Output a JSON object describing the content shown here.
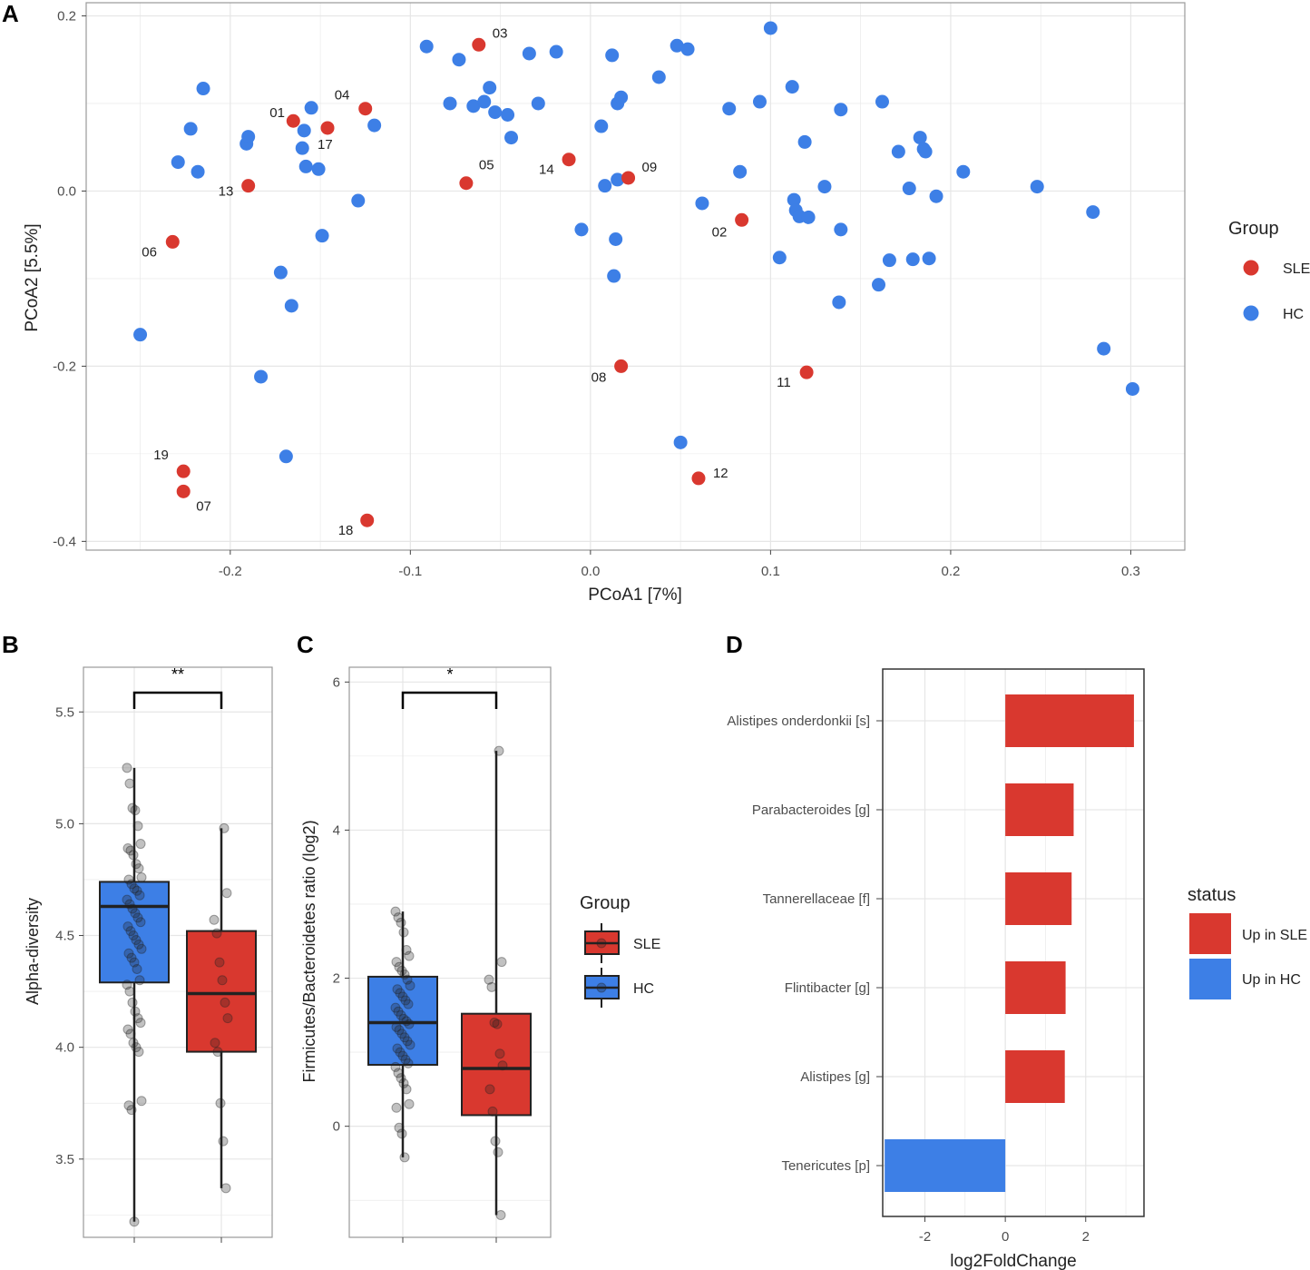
{
  "colors": {
    "sle": "#d9382f",
    "hc": "#3d7fe6",
    "grid": "#e6e6e6",
    "frame": "#9a9a9a",
    "text": "#222222",
    "axis_text": "#4d4d4d"
  },
  "panel_labels": {
    "a": "A",
    "b": "B",
    "c": "C",
    "d": "D"
  },
  "chart_data": [
    {
      "id": "A",
      "type": "scatter",
      "title": "",
      "xlabel": "PCoA1   [7%]",
      "ylabel": "PCoA2   [5.5%]",
      "xlim": [
        -0.28,
        0.33
      ],
      "ylim": [
        -0.41,
        0.215
      ],
      "xticks": [
        -0.2,
        -0.1,
        0.0,
        0.1,
        0.2,
        0.3
      ],
      "xtick_labels": [
        "-0.2",
        "-0.1",
        "0.0",
        "0.1",
        "0.2",
        "0.3"
      ],
      "yticks": [
        -0.4,
        -0.2,
        0.0,
        0.2
      ],
      "ytick_labels": [
        "-0.4",
        "-0.2",
        "0.0",
        "0.2"
      ],
      "legend": {
        "title": "Group",
        "position": "right",
        "entries": [
          "SLE",
          "HC"
        ]
      },
      "series": [
        {
          "name": "SLE",
          "points": [
            {
              "x": -0.165,
              "y": 0.08,
              "label": "01"
            },
            {
              "x": 0.084,
              "y": -0.033,
              "label": "02"
            },
            {
              "x": -0.062,
              "y": 0.167,
              "label": "03"
            },
            {
              "x": -0.125,
              "y": 0.094,
              "label": "04"
            },
            {
              "x": -0.069,
              "y": 0.009,
              "label": "05"
            },
            {
              "x": -0.232,
              "y": -0.058,
              "label": "06"
            },
            {
              "x": -0.226,
              "y": -0.343,
              "label": "07"
            },
            {
              "x": 0.017,
              "y": -0.2,
              "label": "08"
            },
            {
              "x": 0.021,
              "y": 0.015,
              "label": "09"
            },
            {
              "x": 0.12,
              "y": -0.207,
              "label": "11"
            },
            {
              "x": 0.06,
              "y": -0.328,
              "label": "12"
            },
            {
              "x": -0.19,
              "y": 0.006,
              "label": "13"
            },
            {
              "x": -0.012,
              "y": 0.036,
              "label": "14"
            },
            {
              "x": -0.146,
              "y": 0.072,
              "label": "17"
            },
            {
              "x": -0.124,
              "y": -0.376,
              "label": "18"
            },
            {
              "x": -0.226,
              "y": -0.32,
              "label": "19"
            }
          ]
        },
        {
          "name": "HC",
          "points": [
            {
              "x": -0.25,
              "y": -0.164
            },
            {
              "x": -0.229,
              "y": 0.033
            },
            {
              "x": -0.218,
              "y": 0.022
            },
            {
              "x": -0.215,
              "y": 0.117
            },
            {
              "x": -0.222,
              "y": 0.071
            },
            {
              "x": -0.191,
              "y": 0.054
            },
            {
              "x": -0.19,
              "y": 0.062
            },
            {
              "x": -0.183,
              "y": -0.212
            },
            {
              "x": -0.172,
              "y": -0.093
            },
            {
              "x": -0.169,
              "y": -0.303
            },
            {
              "x": -0.166,
              "y": -0.131
            },
            {
              "x": -0.159,
              "y": 0.069
            },
            {
              "x": -0.16,
              "y": 0.049
            },
            {
              "x": -0.158,
              "y": 0.028
            },
            {
              "x": -0.155,
              "y": 0.095
            },
            {
              "x": -0.151,
              "y": 0.025
            },
            {
              "x": -0.149,
              "y": -0.051
            },
            {
              "x": -0.129,
              "y": -0.011
            },
            {
              "x": -0.12,
              "y": 0.075
            },
            {
              "x": -0.091,
              "y": 0.165
            },
            {
              "x": -0.078,
              "y": 0.1
            },
            {
              "x": -0.073,
              "y": 0.15
            },
            {
              "x": -0.065,
              "y": 0.097
            },
            {
              "x": -0.059,
              "y": 0.102
            },
            {
              "x": -0.056,
              "y": 0.118
            },
            {
              "x": -0.053,
              "y": 0.09
            },
            {
              "x": -0.046,
              "y": 0.087
            },
            {
              "x": -0.044,
              "y": 0.061
            },
            {
              "x": -0.034,
              "y": 0.157
            },
            {
              "x": -0.029,
              "y": 0.1
            },
            {
              "x": -0.019,
              "y": 0.159
            },
            {
              "x": -0.005,
              "y": -0.044
            },
            {
              "x": 0.006,
              "y": 0.074
            },
            {
              "x": 0.008,
              "y": 0.006
            },
            {
              "x": 0.012,
              "y": 0.155
            },
            {
              "x": 0.013,
              "y": -0.097
            },
            {
              "x": 0.014,
              "y": -0.055
            },
            {
              "x": 0.015,
              "y": 0.013
            },
            {
              "x": 0.015,
              "y": 0.1
            },
            {
              "x": 0.017,
              "y": 0.107
            },
            {
              "x": 0.038,
              "y": 0.13
            },
            {
              "x": 0.048,
              "y": 0.166
            },
            {
              "x": 0.05,
              "y": -0.287
            },
            {
              "x": 0.054,
              "y": 0.162
            },
            {
              "x": 0.062,
              "y": -0.014
            },
            {
              "x": 0.077,
              "y": 0.094
            },
            {
              "x": 0.083,
              "y": 0.022
            },
            {
              "x": 0.094,
              "y": 0.102
            },
            {
              "x": 0.1,
              "y": 0.186
            },
            {
              "x": 0.105,
              "y": -0.076
            },
            {
              "x": 0.112,
              "y": 0.119
            },
            {
              "x": 0.113,
              "y": -0.01
            },
            {
              "x": 0.114,
              "y": -0.022
            },
            {
              "x": 0.116,
              "y": -0.029
            },
            {
              "x": 0.119,
              "y": 0.056
            },
            {
              "x": 0.121,
              "y": -0.03
            },
            {
              "x": 0.13,
              "y": 0.005
            },
            {
              "x": 0.138,
              "y": -0.127
            },
            {
              "x": 0.139,
              "y": 0.093
            },
            {
              "x": 0.139,
              "y": -0.044
            },
            {
              "x": 0.16,
              "y": -0.107
            },
            {
              "x": 0.162,
              "y": 0.102
            },
            {
              "x": 0.166,
              "y": -0.079
            },
            {
              "x": 0.171,
              "y": 0.045
            },
            {
              "x": 0.177,
              "y": 0.003
            },
            {
              "x": 0.179,
              "y": -0.078
            },
            {
              "x": 0.183,
              "y": 0.061
            },
            {
              "x": 0.185,
              "y": 0.048
            },
            {
              "x": 0.186,
              "y": 0.045
            },
            {
              "x": 0.188,
              "y": -0.077
            },
            {
              "x": 0.192,
              "y": -0.006
            },
            {
              "x": 0.207,
              "y": 0.022
            },
            {
              "x": 0.248,
              "y": 0.005
            },
            {
              "x": 0.279,
              "y": -0.024
            },
            {
              "x": 0.285,
              "y": -0.18
            },
            {
              "x": 0.301,
              "y": -0.226
            }
          ]
        }
      ]
    },
    {
      "id": "B",
      "type": "box",
      "title": "",
      "xlabel": "",
      "ylabel": "Alpha-diversity",
      "ylim": [
        3.15,
        5.7
      ],
      "yticks": [
        3.5,
        4.0,
        4.5,
        5.0,
        5.5
      ],
      "ytick_labels": [
        "3.5",
        "4.0",
        "4.5",
        "5.0",
        "5.5"
      ],
      "significance": "**",
      "groups": [
        {
          "name": "HC",
          "min": 3.22,
          "q1": 4.29,
          "median": 4.63,
          "q3": 4.74,
          "max": 5.25,
          "points": [
            5.25,
            5.18,
            5.07,
            5.06,
            4.99,
            4.91,
            4.89,
            4.88,
            4.86,
            4.82,
            4.8,
            4.76,
            4.75,
            4.73,
            4.71,
            4.7,
            4.68,
            4.66,
            4.64,
            4.62,
            4.6,
            4.58,
            4.56,
            4.54,
            4.52,
            4.5,
            4.48,
            4.46,
            4.44,
            4.42,
            4.4,
            4.38,
            4.35,
            4.3,
            4.28,
            4.25,
            4.2,
            4.16,
            4.13,
            4.11,
            4.08,
            4.06,
            4.02,
            4.0,
            3.98,
            3.76,
            3.74,
            3.72,
            3.22
          ]
        },
        {
          "name": "SLE",
          "min": 3.37,
          "q1": 3.98,
          "median": 4.24,
          "q3": 4.52,
          "max": 4.98,
          "points": [
            4.98,
            4.69,
            4.57,
            4.51,
            4.38,
            4.3,
            4.2,
            4.13,
            4.02,
            3.98,
            3.75,
            3.58,
            3.37
          ]
        }
      ]
    },
    {
      "id": "C",
      "type": "box",
      "title": "",
      "xlabel": "",
      "ylabel": "Firmicutes/Bacteroidetes ratio (log2)",
      "ylim": [
        -1.5,
        6.2
      ],
      "yticks": [
        0,
        2,
        4,
        6
      ],
      "ytick_labels": [
        "0",
        "2",
        "4",
        "6"
      ],
      "significance": "*",
      "legend": {
        "title": "Group",
        "position": "right",
        "entries": [
          "SLE",
          "HC"
        ]
      },
      "groups": [
        {
          "name": "HC",
          "min": -0.42,
          "q1": 0.83,
          "median": 1.4,
          "q3": 2.02,
          "max": 2.9,
          "points": [
            2.9,
            2.82,
            2.75,
            2.62,
            2.38,
            2.3,
            2.22,
            2.15,
            2.1,
            2.05,
            1.98,
            1.9,
            1.85,
            1.8,
            1.75,
            1.7,
            1.65,
            1.6,
            1.55,
            1.5,
            1.45,
            1.42,
            1.38,
            1.34,
            1.3,
            1.25,
            1.2,
            1.15,
            1.1,
            1.05,
            1.0,
            0.95,
            0.9,
            0.85,
            0.8,
            0.72,
            0.65,
            0.58,
            0.5,
            0.3,
            0.25,
            -0.02,
            -0.1,
            -0.42
          ]
        },
        {
          "name": "SLE",
          "min": -1.2,
          "q1": 0.15,
          "median": 0.78,
          "q3": 1.52,
          "max": 5.07,
          "points": [
            5.07,
            2.22,
            1.98,
            1.88,
            1.4,
            1.38,
            0.98,
            0.82,
            0.5,
            0.2,
            -0.2,
            -0.35,
            -1.2
          ]
        }
      ]
    },
    {
      "id": "D",
      "type": "bar",
      "orientation": "horizontal",
      "title": "",
      "xlabel": "log2FoldChange",
      "ylabel": "",
      "xlim": [
        -3.05,
        3.45
      ],
      "xticks": [
        -2,
        0,
        2
      ],
      "xtick_labels": [
        "-2",
        "0",
        "2"
      ],
      "legend": {
        "title": "status",
        "position": "right",
        "entries": [
          "Up in SLE",
          "Up in HC"
        ]
      },
      "categories": [
        "Alistipes onderdonkii [s]",
        "Parabacteroides [g]",
        "Tannerellaceae [f]",
        "Flintibacter [g]",
        "Alistipes [g]",
        "Tenericutes [p]"
      ],
      "values": [
        3.2,
        1.7,
        1.65,
        1.5,
        1.48,
        -3.0
      ],
      "status": [
        "Up in SLE",
        "Up in SLE",
        "Up in SLE",
        "Up in SLE",
        "Up in SLE",
        "Up in HC"
      ]
    }
  ]
}
